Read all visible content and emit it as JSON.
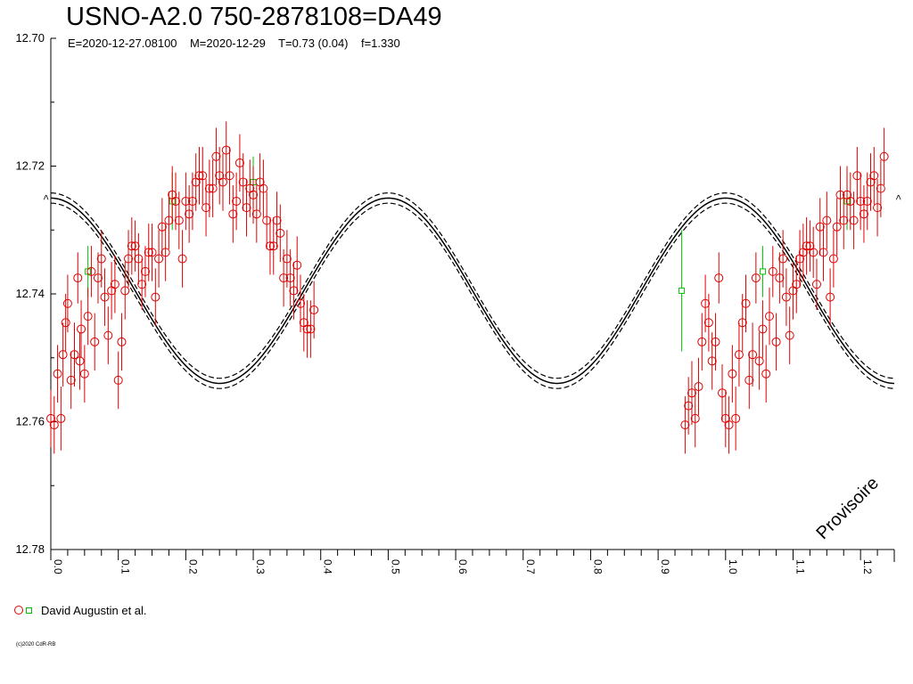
{
  "chart_data": {
    "type": "scatter",
    "title": "USNO-A2.0 750-2878108=DA49",
    "subtitle": "E=2020-12-27.08100    M=2020-12-29    T=0.73 (0.04)    f=1.330",
    "xlabel": "",
    "ylabel": "",
    "xlim": [
      0.0,
      1.25
    ],
    "ylim": [
      12.7,
      12.78
    ],
    "y_inverted": true,
    "grid": false,
    "y_ticks": [
      "12.70",
      "12.72",
      "12.74",
      "12.76",
      "12.78"
    ],
    "x_ticks": [
      "0.0",
      "0.1",
      "0.2",
      "0.3",
      "0.4",
      "0.5",
      "0.6",
      "0.7",
      "0.8",
      "0.9",
      "1.0",
      "1.1",
      "1.2"
    ],
    "watermark": "Provisoire",
    "period_markers": [
      "<",
      "<"
    ],
    "model": {
      "type": "sinusoid",
      "mean": 12.7395,
      "amplitude": 0.0145,
      "period": 0.5,
      "minimum_phase": 0.0,
      "envelope": 0.0008
    },
    "series": [
      {
        "name": "David Augustin et al.",
        "marker": "circle",
        "color": "#e00000",
        "error_color": "#e00000",
        "points": [
          [
            0.0,
            12.7595,
            0.0045
          ],
          [
            0.005,
            12.7605,
            0.0045
          ],
          [
            0.01,
            12.7525,
            0.0045
          ],
          [
            0.015,
            12.7595,
            0.005
          ],
          [
            0.018,
            12.7495,
            0.005
          ],
          [
            0.022,
            12.7445,
            0.0045
          ],
          [
            0.025,
            12.7415,
            0.0045
          ],
          [
            0.03,
            12.7535,
            0.0045
          ],
          [
            0.035,
            12.7495,
            0.005
          ],
          [
            0.04,
            12.7375,
            0.004
          ],
          [
            0.043,
            12.7505,
            0.0045
          ],
          [
            0.045,
            12.7455,
            0.0045
          ],
          [
            0.05,
            12.7525,
            0.0045
          ],
          [
            0.055,
            12.7435,
            0.0045
          ],
          [
            0.06,
            12.7365,
            0.004
          ],
          [
            0.065,
            12.7475,
            0.0045
          ],
          [
            0.07,
            12.7375,
            0.004
          ],
          [
            0.075,
            12.7345,
            0.0045
          ],
          [
            0.08,
            12.7405,
            0.0045
          ],
          [
            0.085,
            12.7465,
            0.0045
          ],
          [
            0.09,
            12.7395,
            0.0045
          ],
          [
            0.095,
            12.7385,
            0.0045
          ],
          [
            0.1,
            12.7535,
            0.0045
          ],
          [
            0.105,
            12.7475,
            0.0045
          ],
          [
            0.11,
            12.7395,
            0.0045
          ],
          [
            0.115,
            12.7345,
            0.0045
          ],
          [
            0.12,
            12.7325,
            0.0045
          ],
          [
            0.125,
            12.7325,
            0.004
          ],
          [
            0.13,
            12.7345,
            0.004
          ],
          [
            0.135,
            12.7385,
            0.004
          ],
          [
            0.14,
            12.7365,
            0.004
          ],
          [
            0.145,
            12.7335,
            0.0045
          ],
          [
            0.15,
            12.7335,
            0.0045
          ],
          [
            0.155,
            12.7405,
            0.0045
          ],
          [
            0.16,
            12.7345,
            0.0045
          ],
          [
            0.165,
            12.7295,
            0.0045
          ],
          [
            0.17,
            12.7335,
            0.0045
          ],
          [
            0.175,
            12.7285,
            0.0045
          ],
          [
            0.18,
            12.7245,
            0.0045
          ],
          [
            0.185,
            12.7255,
            0.0045
          ],
          [
            0.19,
            12.7285,
            0.0045
          ],
          [
            0.195,
            12.7345,
            0.0045
          ],
          [
            0.2,
            12.7255,
            0.0045
          ],
          [
            0.205,
            12.7275,
            0.0045
          ],
          [
            0.21,
            12.7255,
            0.0045
          ],
          [
            0.215,
            12.7225,
            0.0045
          ],
          [
            0.22,
            12.7215,
            0.0045
          ],
          [
            0.225,
            12.7215,
            0.0045
          ],
          [
            0.23,
            12.7265,
            0.0045
          ],
          [
            0.235,
            12.7235,
            0.0045
          ],
          [
            0.24,
            12.7235,
            0.0045
          ],
          [
            0.245,
            12.7185,
            0.0045
          ],
          [
            0.25,
            12.7215,
            0.0045
          ],
          [
            0.255,
            12.7225,
            0.0045
          ],
          [
            0.26,
            12.7175,
            0.0045
          ],
          [
            0.265,
            12.7215,
            0.0045
          ],
          [
            0.27,
            12.7275,
            0.0045
          ],
          [
            0.275,
            12.7255,
            0.0045
          ],
          [
            0.28,
            12.7195,
            0.0045
          ],
          [
            0.285,
            12.7225,
            0.0045
          ],
          [
            0.29,
            12.7265,
            0.0045
          ],
          [
            0.295,
            12.7235,
            0.0045
          ],
          [
            0.3,
            12.7245,
            0.0045
          ],
          [
            0.305,
            12.7275,
            0.0045
          ],
          [
            0.31,
            12.7225,
            0.0045
          ],
          [
            0.315,
            12.7235,
            0.0045
          ],
          [
            0.32,
            12.7285,
            0.0045
          ],
          [
            0.325,
            12.7325,
            0.0045
          ],
          [
            0.33,
            12.7325,
            0.0045
          ],
          [
            0.335,
            12.7285,
            0.0045
          ],
          [
            0.34,
            12.7305,
            0.0045
          ],
          [
            0.345,
            12.7375,
            0.0045
          ],
          [
            0.35,
            12.7345,
            0.0045
          ],
          [
            0.355,
            12.7375,
            0.0045
          ],
          [
            0.36,
            12.7395,
            0.0045
          ],
          [
            0.365,
            12.7355,
            0.0045
          ],
          [
            0.37,
            12.7415,
            0.0045
          ],
          [
            0.375,
            12.7445,
            0.0045
          ],
          [
            0.38,
            12.7455,
            0.0045
          ],
          [
            0.385,
            12.7455,
            0.0045
          ],
          [
            0.39,
            12.7425,
            0.0045
          ],
          [
            0.94,
            12.7605,
            0.0045
          ],
          [
            0.945,
            12.7575,
            0.0045
          ],
          [
            0.95,
            12.7555,
            0.005
          ],
          [
            0.955,
            12.7595,
            0.0045
          ],
          [
            0.96,
            12.7545,
            0.0045
          ],
          [
            0.965,
            12.7475,
            0.0045
          ],
          [
            0.97,
            12.7415,
            0.0045
          ],
          [
            0.975,
            12.7445,
            0.0045
          ],
          [
            0.98,
            12.7505,
            0.0045
          ],
          [
            0.985,
            12.7475,
            0.0045
          ],
          [
            0.99,
            12.7375,
            0.004
          ],
          [
            0.995,
            12.7555,
            0.0045
          ],
          [
            1.0,
            12.7595,
            0.0045
          ],
          [
            1.005,
            12.7605,
            0.0045
          ],
          [
            1.01,
            12.7525,
            0.0045
          ],
          [
            1.015,
            12.7595,
            0.005
          ],
          [
            1.02,
            12.7495,
            0.005
          ],
          [
            1.025,
            12.7445,
            0.0045
          ],
          [
            1.03,
            12.7415,
            0.0045
          ],
          [
            1.035,
            12.7535,
            0.0045
          ],
          [
            1.04,
            12.7495,
            0.005
          ],
          [
            1.045,
            12.7375,
            0.004
          ],
          [
            1.05,
            12.7505,
            0.0045
          ],
          [
            1.055,
            12.7455,
            0.0045
          ],
          [
            1.06,
            12.7525,
            0.0045
          ],
          [
            1.065,
            12.7435,
            0.0045
          ],
          [
            1.07,
            12.7365,
            0.004
          ],
          [
            1.075,
            12.7475,
            0.0045
          ],
          [
            1.08,
            12.7375,
            0.004
          ],
          [
            1.085,
            12.7345,
            0.0045
          ],
          [
            1.09,
            12.7405,
            0.0045
          ],
          [
            1.095,
            12.7465,
            0.0045
          ],
          [
            1.1,
            12.7395,
            0.0045
          ],
          [
            1.105,
            12.7385,
            0.0045
          ],
          [
            1.11,
            12.7345,
            0.0045
          ],
          [
            1.115,
            12.7335,
            0.0045
          ],
          [
            1.12,
            12.7325,
            0.0045
          ],
          [
            1.125,
            12.7325,
            0.004
          ],
          [
            1.13,
            12.7335,
            0.004
          ],
          [
            1.135,
            12.7385,
            0.004
          ],
          [
            1.14,
            12.7295,
            0.0045
          ],
          [
            1.145,
            12.7335,
            0.0045
          ],
          [
            1.15,
            12.7285,
            0.0045
          ],
          [
            1.155,
            12.7405,
            0.0045
          ],
          [
            1.16,
            12.7345,
            0.0045
          ],
          [
            1.165,
            12.7295,
            0.0045
          ],
          [
            1.17,
            12.7245,
            0.0045
          ],
          [
            1.175,
            12.7285,
            0.0045
          ],
          [
            1.18,
            12.7245,
            0.0045
          ],
          [
            1.185,
            12.7255,
            0.0045
          ],
          [
            1.19,
            12.7285,
            0.0045
          ],
          [
            1.195,
            12.7215,
            0.0045
          ],
          [
            1.2,
            12.7255,
            0.0045
          ],
          [
            1.205,
            12.7275,
            0.0045
          ],
          [
            1.21,
            12.7255,
            0.0045
          ],
          [
            1.215,
            12.7225,
            0.0045
          ],
          [
            1.22,
            12.7215,
            0.0045
          ],
          [
            1.225,
            12.7265,
            0.0045
          ],
          [
            1.23,
            12.7235,
            0.0045
          ],
          [
            1.235,
            12.7185,
            0.0045
          ]
        ]
      },
      {
        "name": "",
        "marker": "square",
        "color": "#00c000",
        "error_color": "#00c000",
        "points": [
          [
            0.055,
            12.7365,
            0.004
          ],
          [
            0.18,
            12.7255,
            0.0045
          ],
          [
            0.3,
            12.7225,
            0.004
          ],
          [
            0.935,
            12.7395,
            0.0095
          ],
          [
            1.055,
            12.7365,
            0.004
          ],
          [
            1.18,
            12.7255,
            0.0045
          ]
        ]
      }
    ]
  },
  "legend": {
    "label": "David Augustin et al.",
    "marker_colors": [
      "#e00000",
      "#00c000"
    ]
  },
  "footer": {
    "copyright": "(c)2020 CdR-RB"
  }
}
